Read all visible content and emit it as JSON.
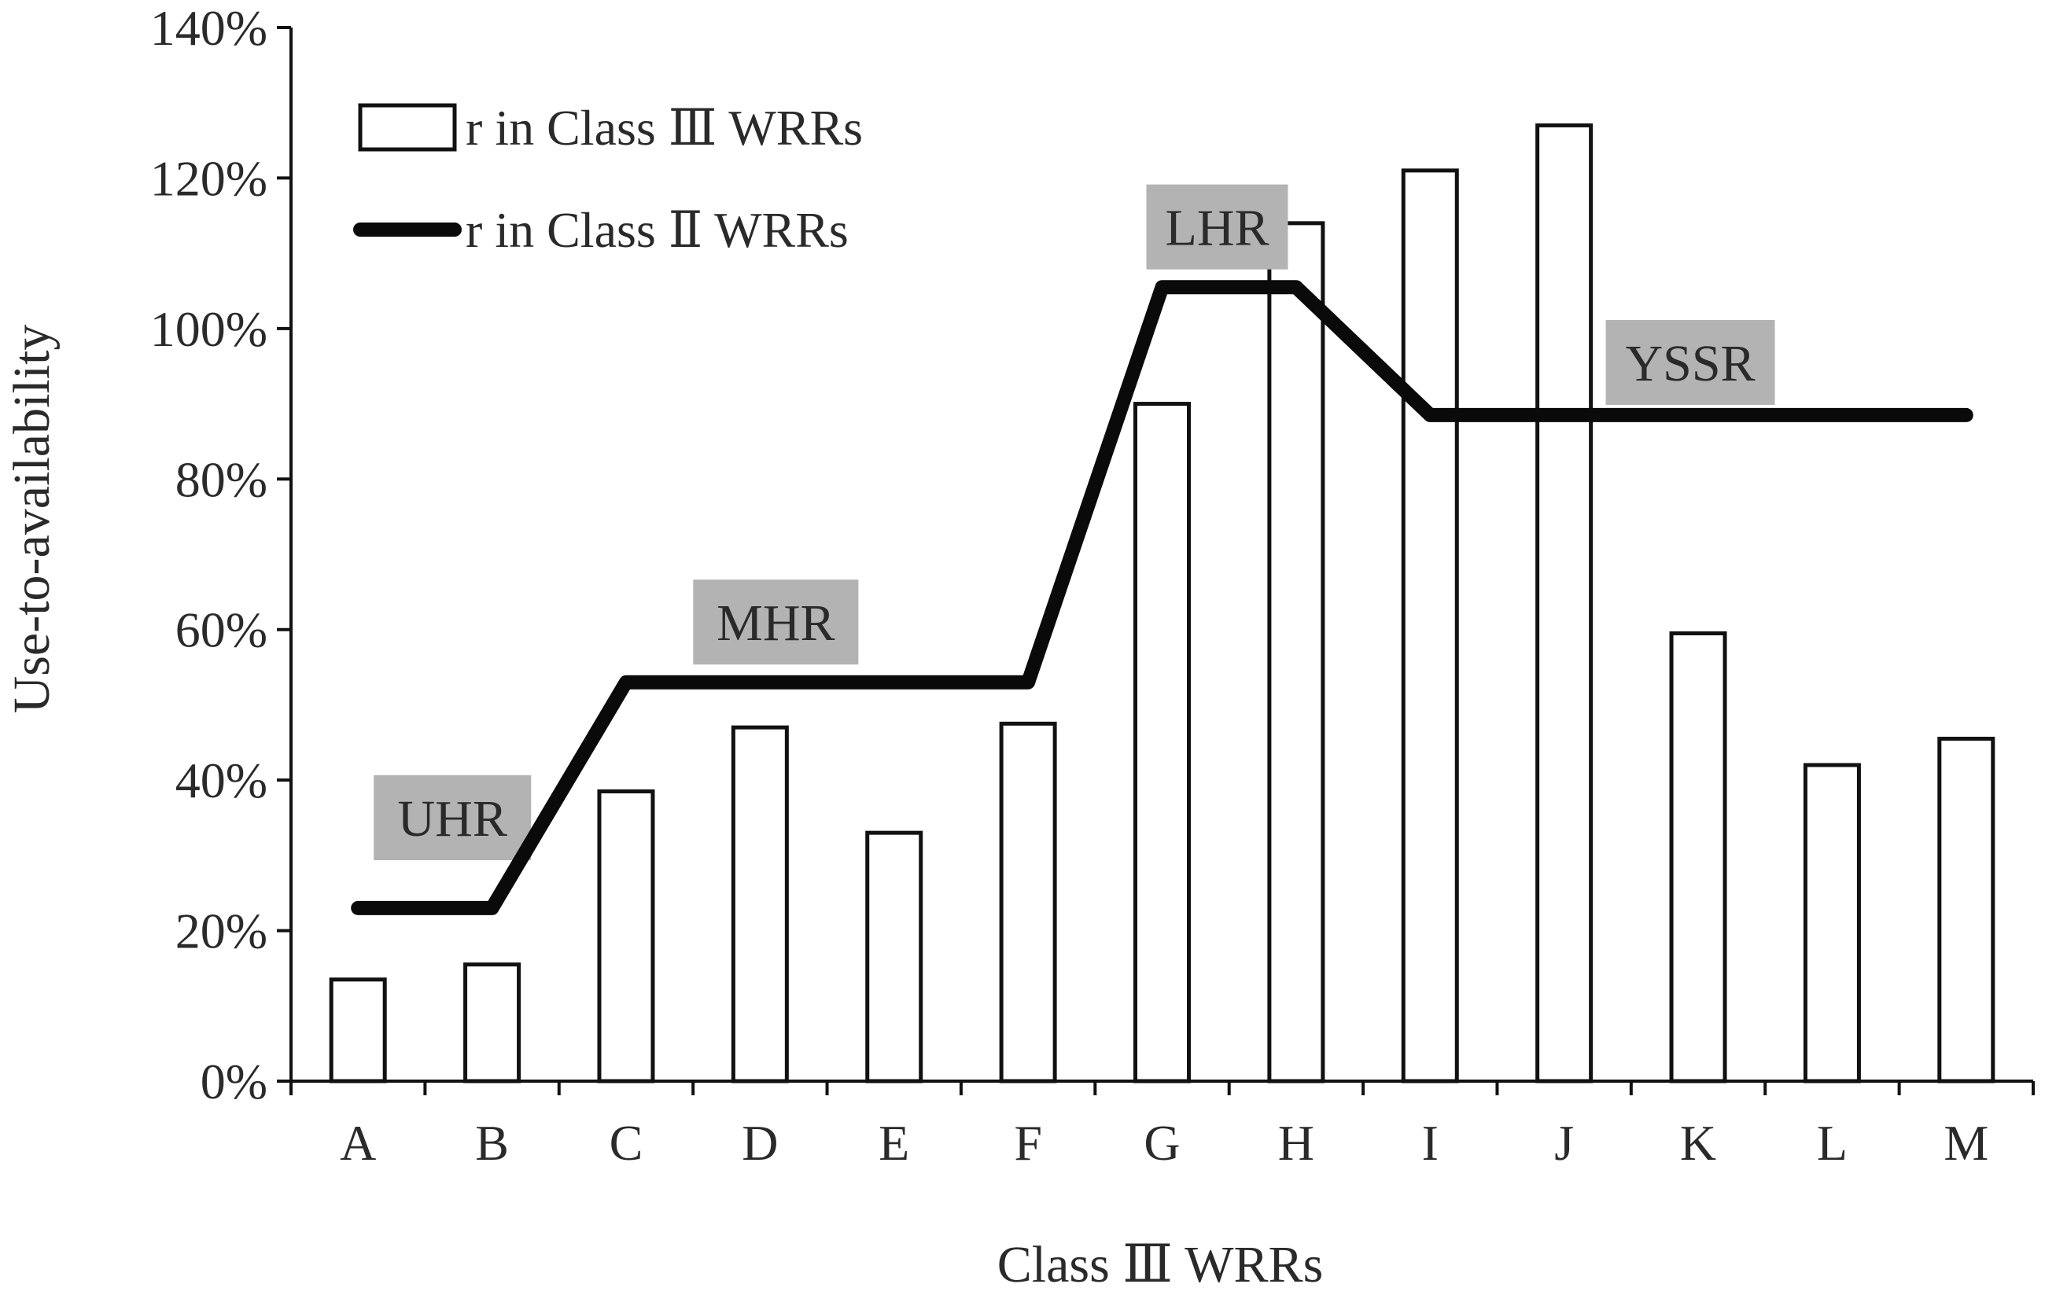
{
  "chart_data": {
    "type": "bar",
    "title": "",
    "xlabel": "Class Ⅲ WRRs",
    "ylabel": "Use-to-availability",
    "ylim": [
      0,
      1.4
    ],
    "yticks": [
      0,
      0.2,
      0.4,
      0.6,
      0.8,
      1.0,
      1.2,
      1.4
    ],
    "ytick_labels": [
      "0%",
      "20%",
      "40%",
      "60%",
      "80%",
      "100%",
      "120%",
      "140%"
    ],
    "categories": [
      "A",
      "B",
      "C",
      "D",
      "E",
      "F",
      "G",
      "H",
      "I",
      "J",
      "K",
      "L",
      "M"
    ],
    "series": [
      {
        "name": "r  in Class Ⅲ WRRs",
        "kind": "bar",
        "values": [
          0.135,
          0.155,
          0.385,
          0.47,
          0.33,
          0.475,
          0.9,
          1.14,
          1.21,
          1.27,
          0.595,
          0.42,
          0.455
        ]
      },
      {
        "name": "r  in Class Ⅱ WRRs",
        "kind": "line",
        "values": [
          0.23,
          0.23,
          0.53,
          0.53,
          0.53,
          0.53,
          1.055,
          1.055,
          0.885,
          0.885,
          0.885,
          0.885,
          0.885
        ]
      }
    ],
    "annotations": [
      {
        "text": "UHR",
        "category": "A",
        "value": 0.35
      },
      {
        "text": "MHR",
        "category": "D",
        "value": 0.61
      },
      {
        "text": "LHR",
        "category": "G",
        "value": 1.135
      },
      {
        "text": "YSSR",
        "category": "K",
        "value": 0.955
      }
    ],
    "legend_position": "top-left",
    "grid": false,
    "colors": {
      "bar_fill": "#ffffff",
      "bar_stroke": "#111111",
      "line": "#0a0a0a",
      "annotation_bg": "#b3b3b3",
      "axis": "#111111"
    }
  }
}
